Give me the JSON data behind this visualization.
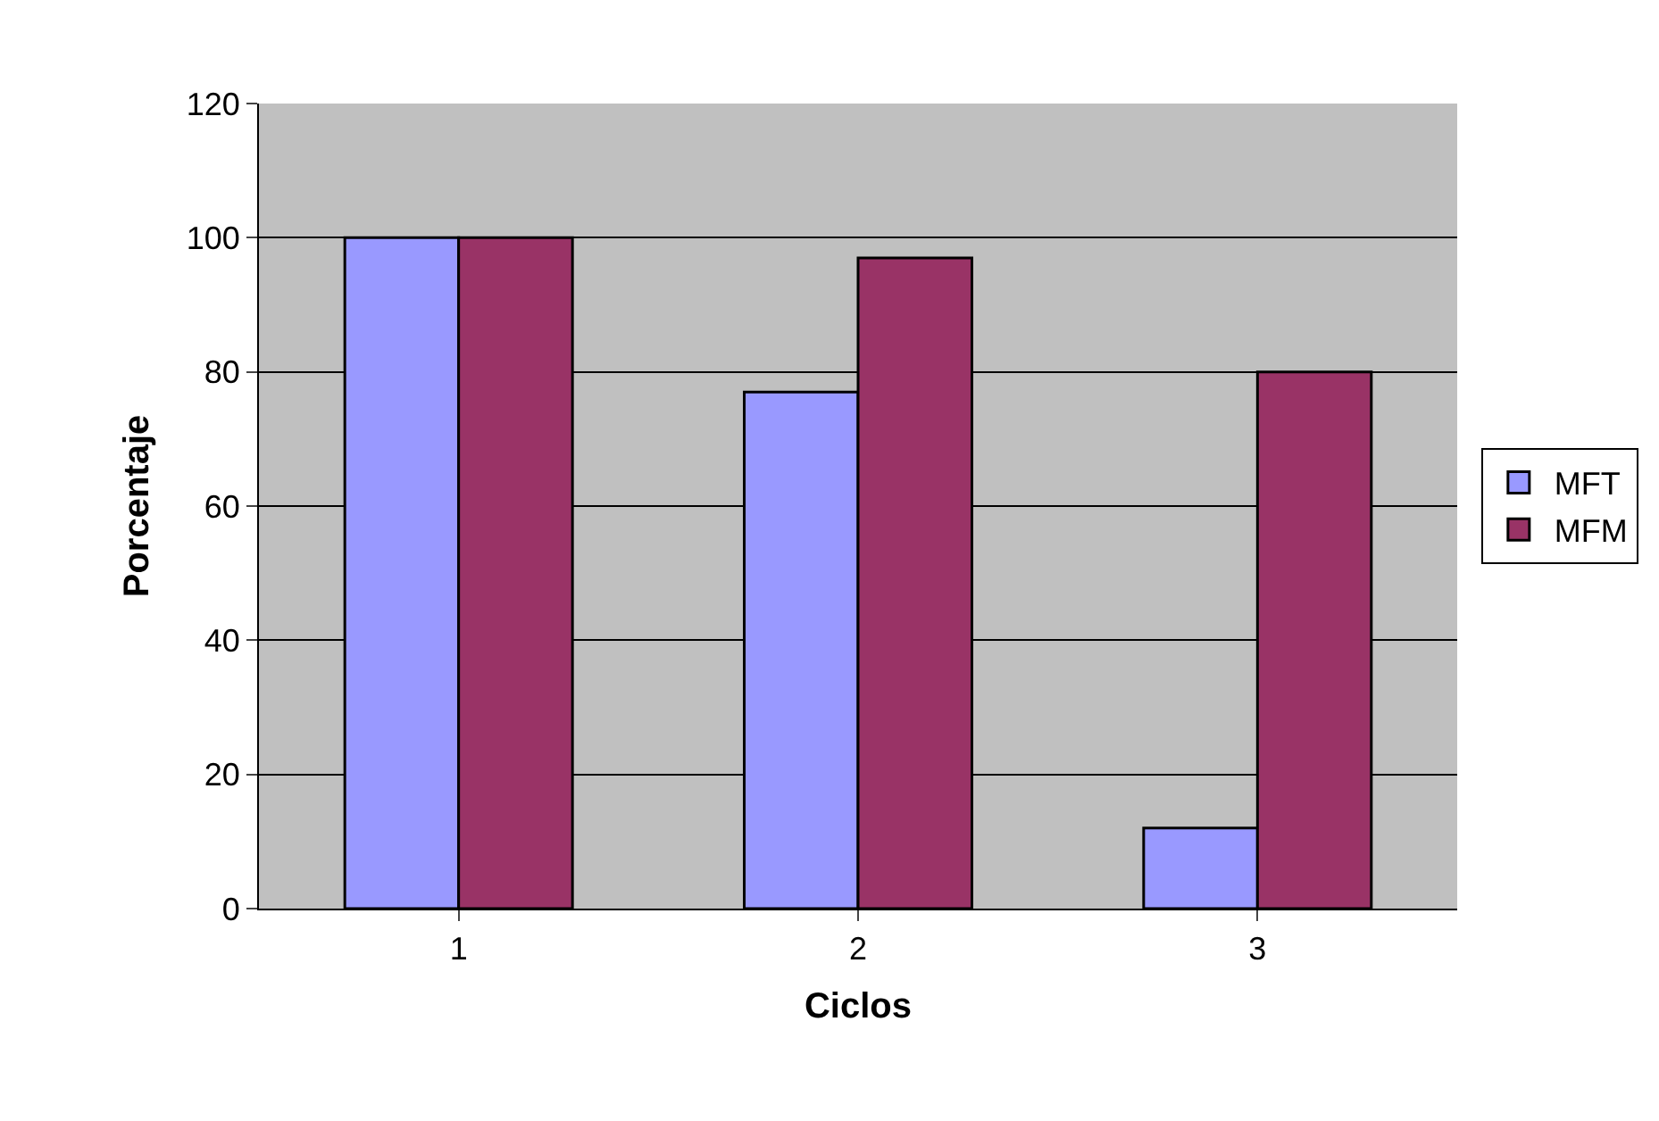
{
  "chart_data": {
    "type": "bar",
    "xlabel": "Ciclos",
    "ylabel": "Porcentaje",
    "categories": [
      "1",
      "2",
      "3"
    ],
    "series": [
      {
        "name": "MFT",
        "color": "#9999ff",
        "values": [
          100,
          77,
          12
        ]
      },
      {
        "name": "MFM",
        "color": "#993366",
        "values": [
          100,
          97,
          80
        ]
      }
    ],
    "ylim": [
      0,
      120
    ],
    "yticks": [
      0,
      20,
      40,
      60,
      80,
      100,
      120
    ],
    "grid": "y",
    "legend": "right"
  }
}
